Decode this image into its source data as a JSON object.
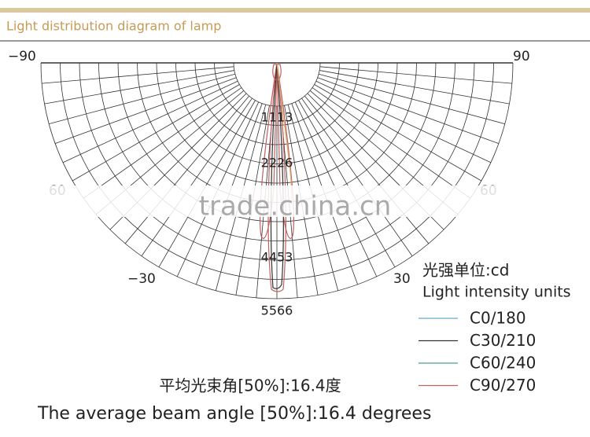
{
  "header": {
    "title": "Light distribution diagram of lamp"
  },
  "diagram": {
    "angle_labels": [
      "−90",
      "90",
      "60",
      "60",
      "−30",
      "30"
    ],
    "ring_labels": [
      "1113",
      "2226",
      "4453",
      "5566"
    ],
    "watermark": "trade.china.cn"
  },
  "legend": {
    "unit_cn": "光强单位:cd",
    "unit_en": "Light intensity units",
    "entries": [
      {
        "label": "C0/180",
        "color": "#6aaac8"
      },
      {
        "label": "C30/210",
        "color": "#333333"
      },
      {
        "label": "C60/240",
        "color": "#4aa080"
      },
      {
        "label": "C90/270",
        "color": "#c06060"
      }
    ]
  },
  "footer": {
    "beam_angle_cn": "平均光束角[50%]:16.4度",
    "beam_angle_en": "The average beam angle [50%]:16.4 degrees"
  }
}
